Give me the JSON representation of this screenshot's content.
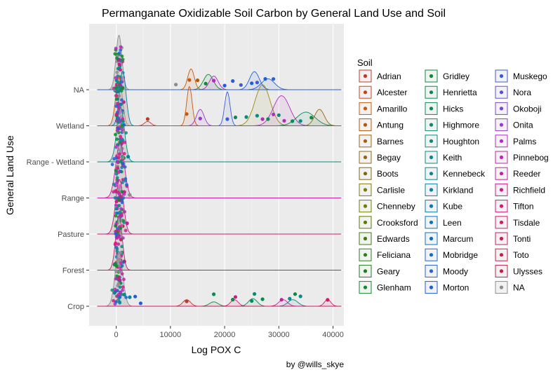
{
  "chart_data": {
    "type": "ridgeline",
    "title": "Permanganate Oxidizable Soil Carbon by General Land Use and Soil",
    "xlabel": "Log POX C",
    "ylabel": "General Land Use",
    "caption": "by @wills_skye",
    "xlim": [
      -5000,
      42000
    ],
    "x_ticks": [
      0,
      10000,
      20000,
      30000,
      40000
    ],
    "x_tick_labels": [
      "0",
      "10000",
      "20000",
      "30000",
      "40000"
    ],
    "categories": [
      "Crop",
      "Forest",
      "Pasture",
      "Range",
      "Range - Wetland",
      "Wetland",
      "NA"
    ],
    "grid": true,
    "legend_position": "right",
    "legend_title": "Soil",
    "legend": [
      {
        "name": "Adrian",
        "color": "#C0392B"
      },
      {
        "name": "Alcester",
        "color": "#C4451C"
      },
      {
        "name": "Amarillo",
        "color": "#C8580F"
      },
      {
        "name": "Antung",
        "color": "#B35806"
      },
      {
        "name": "Barnes",
        "color": "#A0620A"
      },
      {
        "name": "Begay",
        "color": "#8F6A10"
      },
      {
        "name": "Boots",
        "color": "#7D6714"
      },
      {
        "name": "Carlisle",
        "color": "#7A7A10"
      },
      {
        "name": "Chenneby",
        "color": "#6E7E00"
      },
      {
        "name": "Crooksford",
        "color": "#5A7A00"
      },
      {
        "name": "Edwards",
        "color": "#3F7A10"
      },
      {
        "name": "Feliciana",
        "color": "#2E7D1E"
      },
      {
        "name": "Geary",
        "color": "#1E7D1E"
      },
      {
        "name": "Glenham",
        "color": "#118A2E"
      },
      {
        "name": "Gridley",
        "color": "#0D8A3C"
      },
      {
        "name": "Henrietta",
        "color": "#0A8A4A"
      },
      {
        "name": "Hicks",
        "color": "#0A8A5A"
      },
      {
        "name": "Highmore",
        "color": "#0B8A68"
      },
      {
        "name": "Houghton",
        "color": "#0B8A78"
      },
      {
        "name": "Keith",
        "color": "#0A8A88"
      },
      {
        "name": "Kennebeck",
        "color": "#0A8594"
      },
      {
        "name": "Kirkland",
        "color": "#0A80A0"
      },
      {
        "name": "Kube",
        "color": "#0A7AAC"
      },
      {
        "name": "Leen",
        "color": "#0A74B8"
      },
      {
        "name": "Marcum",
        "color": "#0A6EC4"
      },
      {
        "name": "Mobridge",
        "color": "#1A68CC"
      },
      {
        "name": "Moody",
        "color": "#2A62D0"
      },
      {
        "name": "Morton",
        "color": "#1F5FD6"
      },
      {
        "name": "Muskego",
        "color": "#3A5AD8"
      },
      {
        "name": "Nora",
        "color": "#5A4ED8"
      },
      {
        "name": "Okoboji",
        "color": "#7A44D4"
      },
      {
        "name": "Onita",
        "color": "#9A38CC"
      },
      {
        "name": "Palms",
        "color": "#B02CC0"
      },
      {
        "name": "Pinnebog",
        "color": "#C024B0"
      },
      {
        "name": "Reeder",
        "color": "#C81E9E"
      },
      {
        "name": "Richfield",
        "color": "#CC1A8C"
      },
      {
        "name": "Tifton",
        "color": "#D01A7A"
      },
      {
        "name": "Tisdale",
        "color": "#D01A6A"
      },
      {
        "name": "Tonti",
        "color": "#C81E5C"
      },
      {
        "name": "Toto",
        "color": "#C41E50"
      },
      {
        "name": "Ulysses",
        "color": "#C02246"
      },
      {
        "name": "NA",
        "color": "#8C8C8C"
      }
    ],
    "series": [
      {
        "category": "Crop",
        "peaks": [
          {
            "mu": 500,
            "sd": 700,
            "amp": 1.0,
            "color": "#8C8C8C"
          },
          {
            "mu": 13000,
            "sd": 700,
            "amp": 0.12,
            "color": "#C0392B"
          },
          {
            "mu": 18000,
            "sd": 800,
            "amp": 0.08,
            "color": "#118A2E"
          },
          {
            "mu": 21800,
            "sd": 700,
            "amp": 0.12,
            "color": "#D01A7A"
          },
          {
            "mu": 25200,
            "sd": 800,
            "amp": 0.14,
            "color": "#0A8A5A"
          },
          {
            "mu": 30800,
            "sd": 800,
            "amp": 0.12,
            "color": "#C81E9E"
          },
          {
            "mu": 32600,
            "sd": 900,
            "amp": 0.12,
            "color": "#0A8A78"
          },
          {
            "mu": 39000,
            "sd": 600,
            "amp": 0.12,
            "color": "#D01A6A"
          }
        ],
        "points": [
          {
            "x": 13000,
            "color": "#C0392B"
          },
          {
            "x": 18000,
            "color": "#0A8A5A"
          },
          {
            "x": 21500,
            "color": "#0D8A3C"
          },
          {
            "x": 22000,
            "color": "#CC1A8C"
          },
          {
            "x": 25000,
            "color": "#0A8A5A"
          },
          {
            "x": 25500,
            "color": "#0B8A78"
          },
          {
            "x": 27000,
            "color": "#0A8A4A"
          },
          {
            "x": 30500,
            "color": "#C81E9E"
          },
          {
            "x": 32000,
            "color": "#0A8A88"
          },
          {
            "x": 33000,
            "color": "#0D8A3C"
          },
          {
            "x": 34000,
            "color": "#0A8A88"
          },
          {
            "x": 39000,
            "color": "#D01A6A"
          },
          {
            "x": 2500,
            "color": "#0A80A0"
          },
          {
            "x": 3500,
            "color": "#1F5FD6"
          },
          {
            "x": 4500,
            "color": "#1F5FD6"
          },
          {
            "x": 1500,
            "color": "#0A8A88"
          }
        ]
      },
      {
        "category": "Forest",
        "peaks": [
          {
            "mu": 500,
            "sd": 600,
            "amp": 1.0,
            "color": "#D01A7A"
          }
        ],
        "points": [
          {
            "x": 200,
            "color": "#C81E5C"
          },
          {
            "x": 800,
            "color": "#D01A7A"
          },
          {
            "x": 1500,
            "color": "#C41E50"
          }
        ]
      },
      {
        "category": "Pasture",
        "peaks": [
          {
            "mu": 600,
            "sd": 700,
            "amp": 1.0,
            "color": "#D01A7A"
          }
        ],
        "points": [
          {
            "x": 300,
            "color": "#D01A7A"
          },
          {
            "x": 1200,
            "color": "#C41E50"
          },
          {
            "x": 2000,
            "color": "#C81E9E"
          }
        ]
      },
      {
        "category": "Range",
        "peaks": [
          {
            "mu": 700,
            "sd": 800,
            "amp": 1.0,
            "color": "#C81E9E"
          }
        ],
        "points": [
          {
            "x": 500,
            "color": "#C81E9E"
          },
          {
            "x": 1500,
            "color": "#CC1A8C"
          },
          {
            "x": 2500,
            "color": "#8C8C8C"
          }
        ]
      },
      {
        "category": "Range - Wetland",
        "peaks": [
          {
            "mu": 800,
            "sd": 700,
            "amp": 1.0,
            "color": "#0A8A78"
          }
        ],
        "points": [
          {
            "x": 600,
            "color": "#0A8A78"
          },
          {
            "x": 1400,
            "color": "#118A2E"
          },
          {
            "x": 2200,
            "color": "#0A80A0"
          }
        ]
      },
      {
        "category": "Wetland",
        "peaks": [
          {
            "mu": 500,
            "sd": 600,
            "amp": 0.9,
            "color": "#C8580F"
          },
          {
            "mu": 1200,
            "sd": 600,
            "amp": 1.0,
            "color": "#0A80A0"
          },
          {
            "mu": 5800,
            "sd": 600,
            "amp": 0.08,
            "color": "#C0392B"
          },
          {
            "mu": 13500,
            "sd": 500,
            "amp": 0.72,
            "color": "#C8580F"
          },
          {
            "mu": 15500,
            "sd": 700,
            "amp": 0.3,
            "color": "#9A38CC"
          },
          {
            "mu": 20500,
            "sd": 500,
            "amp": 0.62,
            "color": "#3A5AD8"
          },
          {
            "mu": 27000,
            "sd": 1400,
            "amp": 0.75,
            "color": "#9A8A10"
          },
          {
            "mu": 30500,
            "sd": 1500,
            "amp": 0.55,
            "color": "#B02CC0"
          },
          {
            "mu": 35000,
            "sd": 1700,
            "amp": 0.25,
            "color": "#0A8A5A"
          },
          {
            "mu": 37500,
            "sd": 900,
            "amp": 0.3,
            "color": "#8F6A10"
          }
        ],
        "points": [
          {
            "x": 5800,
            "color": "#C0392B"
          },
          {
            "x": 13000,
            "color": "#C8580F"
          },
          {
            "x": 15500,
            "color": "#9A38CC"
          },
          {
            "x": 20500,
            "color": "#3A5AD8"
          },
          {
            "x": 22000,
            "color": "#0A8A5A"
          },
          {
            "x": 24000,
            "color": "#0B8A78"
          },
          {
            "x": 26000,
            "color": "#0A8A88"
          },
          {
            "x": 27000,
            "color": "#B02CC0"
          },
          {
            "x": 28000,
            "color": "#0A8A5A"
          },
          {
            "x": 29000,
            "color": "#9A38CC"
          },
          {
            "x": 30000,
            "color": "#0B8A78"
          },
          {
            "x": 31000,
            "color": "#B02CC0"
          },
          {
            "x": 32500,
            "color": "#0A8A5A"
          },
          {
            "x": 34000,
            "color": "#0A8A88"
          },
          {
            "x": 36000,
            "color": "#0D8A3C"
          },
          {
            "x": 1000,
            "color": "#0A80A0"
          }
        ]
      },
      {
        "category": "NA",
        "peaks": [
          {
            "mu": 500,
            "sd": 550,
            "amp": 1.0,
            "color": "#8C8C8C"
          },
          {
            "mu": 13800,
            "sd": 600,
            "amp": 0.38,
            "color": "#C8580F"
          },
          {
            "mu": 17000,
            "sd": 900,
            "amp": 0.28,
            "color": "#118A2E"
          },
          {
            "mu": 18000,
            "sd": 800,
            "amp": 0.25,
            "color": "#B02CC0"
          },
          {
            "mu": 25500,
            "sd": 900,
            "amp": 0.33,
            "color": "#1F5FD6"
          },
          {
            "mu": 28000,
            "sd": 1200,
            "amp": 0.2,
            "color": "#2A62D0"
          }
        ],
        "points": [
          {
            "x": 11000,
            "color": "#8C8C8C"
          },
          {
            "x": 13500,
            "color": "#C8580F"
          },
          {
            "x": 15000,
            "color": "#B35806"
          },
          {
            "x": 16500,
            "color": "#118A2E"
          },
          {
            "x": 18000,
            "color": "#B02CC0"
          },
          {
            "x": 20000,
            "color": "#1F5FD6"
          },
          {
            "x": 21500,
            "color": "#1F5FD6"
          },
          {
            "x": 23000,
            "color": "#3A5AD8"
          },
          {
            "x": 25000,
            "color": "#1F5FD6"
          },
          {
            "x": 26000,
            "color": "#3A5AD8"
          },
          {
            "x": 27500,
            "color": "#1F5FD6"
          },
          {
            "x": 29000,
            "color": "#2A62D0"
          }
        ]
      }
    ]
  }
}
